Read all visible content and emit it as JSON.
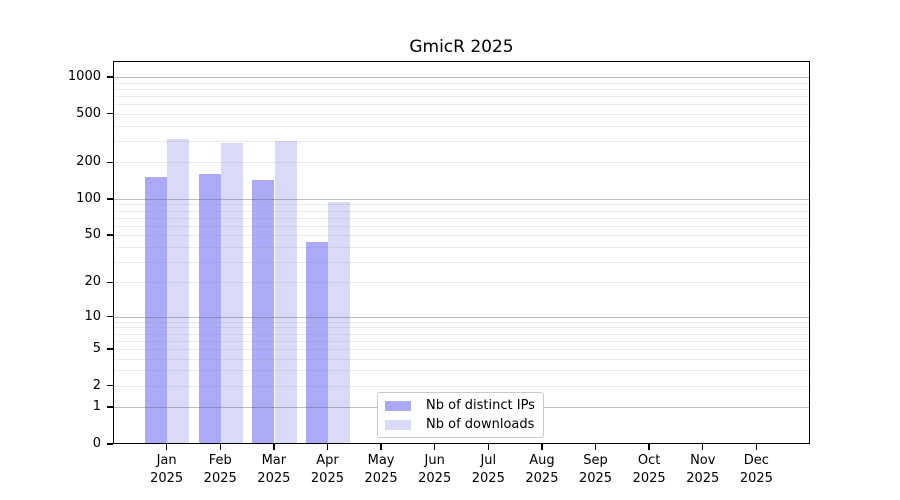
{
  "title": "GmicR 2025",
  "chart_data": {
    "type": "bar",
    "title": "GmicR 2025",
    "categories": [
      "Jan 2025",
      "Feb 2025",
      "Mar 2025",
      "Apr 2025",
      "May 2025",
      "Jun 2025",
      "Jul 2025",
      "Aug 2025",
      "Sep 2025",
      "Oct 2025",
      "Nov 2025",
      "Dec 2025"
    ],
    "x_tick_months": [
      "Jan",
      "Feb",
      "Mar",
      "Apr",
      "May",
      "Jun",
      "Jul",
      "Aug",
      "Sep",
      "Oct",
      "Nov",
      "Dec"
    ],
    "x_tick_year": "2025",
    "series": [
      {
        "name": "Nb of distinct IPs",
        "color": "#aaaaf8",
        "values": [
          148,
          157,
          140,
          43,
          null,
          null,
          null,
          null,
          null,
          null,
          null,
          null
        ]
      },
      {
        "name": "Nb of downloads",
        "color": "#d9d9f8",
        "values": [
          306,
          284,
          295,
          92,
          null,
          null,
          null,
          null,
          null,
          null,
          null,
          null
        ]
      }
    ],
    "y_ticks": [
      0,
      1,
      2,
      5,
      10,
      20,
      50,
      100,
      200,
      500,
      1000
    ],
    "y_scale": "log1p",
    "ylim": [
      0,
      1352
    ],
    "xlabel": "",
    "ylabel": "",
    "grid": "horizontal: dark lines at 1,10,100,1000; faint log minor lines",
    "legend_position": "inside, lower center-left",
    "legend_entries": [
      "Nb of distinct IPs",
      "Nb of downloads"
    ]
  },
  "colors": {
    "background": "#ffffff",
    "spine": "#000000",
    "major_grid": "rgba(100,100,100,0.42)",
    "minor_grid": "rgba(140,140,140,0.18)",
    "legend_border": "#c9c9c9"
  }
}
